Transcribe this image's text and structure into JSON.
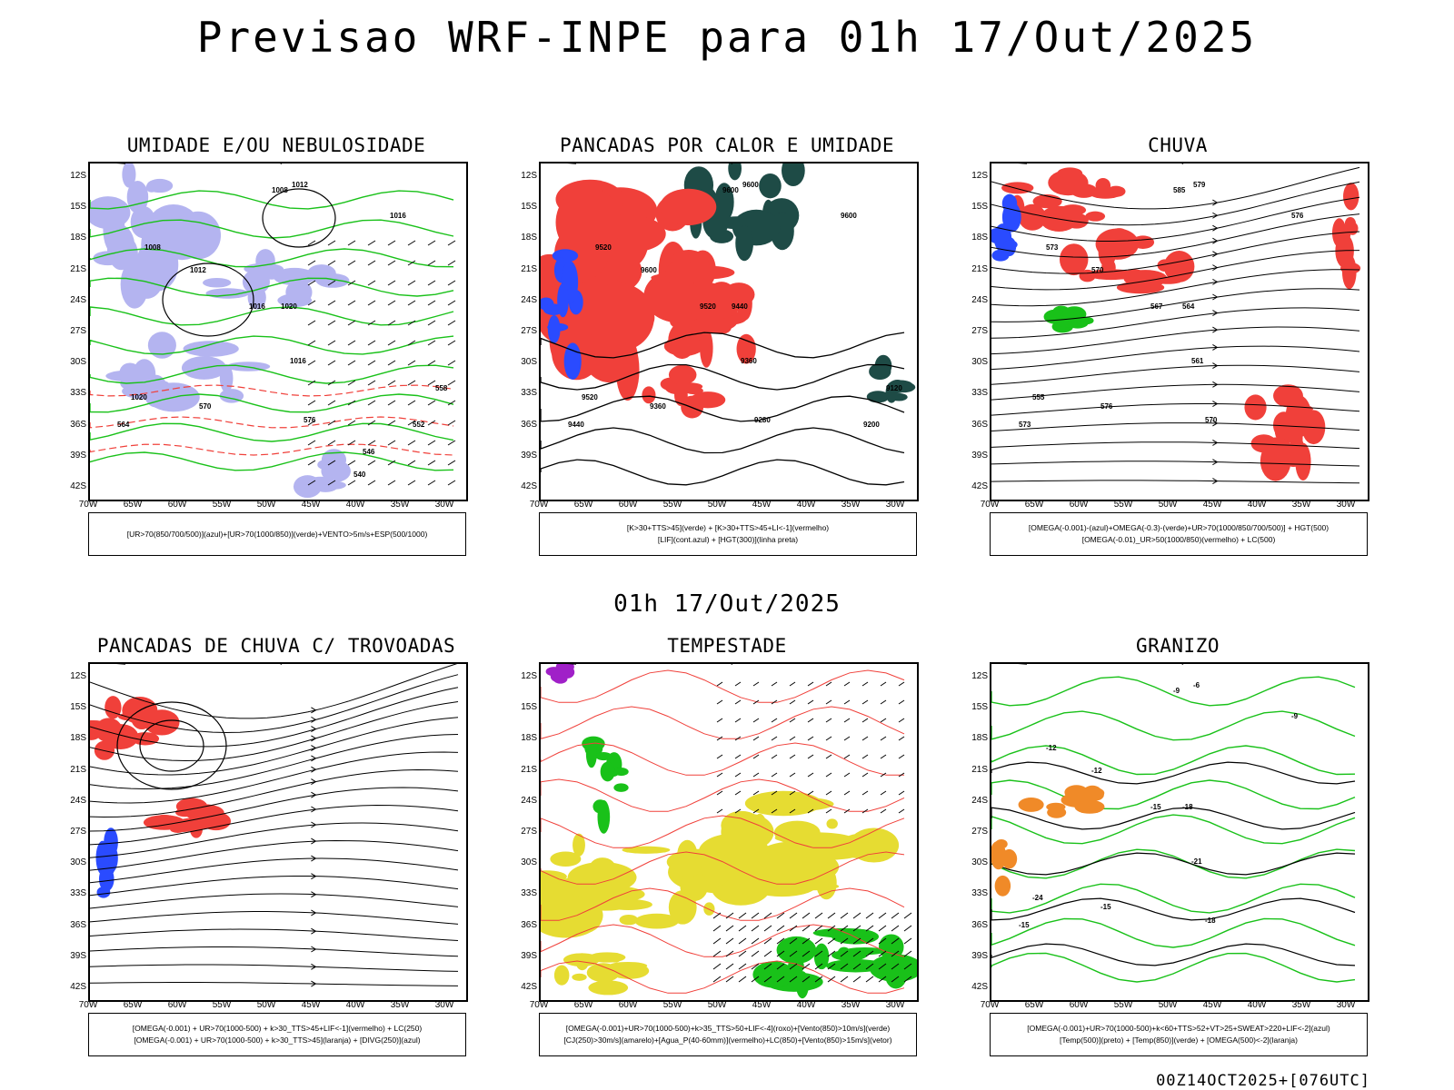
{
  "header": {
    "title": "Previsao WRF-INPE  para 01h 17/Out/2025",
    "mid_title": "01h 17/Out/2025",
    "footer": "00Z14OCT2025+[076UTC]"
  },
  "axes": {
    "lat_labels": [
      "12S",
      "15S",
      "18S",
      "21S",
      "24S",
      "27S",
      "30S",
      "33S",
      "36S",
      "39S",
      "42S"
    ],
    "lon_labels": [
      "70W",
      "65W",
      "60W",
      "55W",
      "50W",
      "45W",
      "40W",
      "35W",
      "30W"
    ]
  },
  "colors": {
    "land_line": "#000000",
    "green": "#19c119",
    "red": "#f0403a",
    "blue": "#2a4bff",
    "lavender": "#b4b4f0",
    "dark_teal": "#1e4b46",
    "yellow": "#e6dc32",
    "orange": "#f08a28",
    "purple": "#a020c8"
  },
  "panels": [
    {
      "id": "umidade",
      "title": "UMIDADE E/OU NEBULOSIDADE",
      "legend": [
        "[UR>70(850/700/500)](azul)+[UR>70(1000/850)](verde)+VENTO>5m/s+ESP(500/1000)"
      ],
      "contour_labels": [
        "1008",
        "1012",
        "1016",
        "1008",
        "1012",
        "1016",
        "1020",
        "1016",
        "1020",
        "564",
        "570",
        "576",
        "552",
        "558",
        "546",
        "540"
      ]
    },
    {
      "id": "pancadas-calor",
      "title": "PANCADAS POR CALOR E UMIDADE",
      "legend": [
        "[K>30+TTS>45](verde) + [K>30+TTS>45+LI<-1](vermelho)",
        "[LIF](cont.azul) + [HGT(300)](linha preta)"
      ],
      "contour_labels": [
        "9600",
        "9600",
        "9600",
        "9520",
        "9600",
        "9520",
        "9440",
        "9360",
        "9520",
        "9440",
        "9360",
        "9280",
        "9200",
        "9120"
      ]
    },
    {
      "id": "chuva",
      "title": "CHUVA",
      "legend": [
        "[OMEGA(-0.001)-(azul)+OMEGA(-0.3)-(verde)+UR>70(1000/850/700/500)] + HGT(500)",
        "[OMEGA(-0.01)_UR>50(1000/850)(vermelho) + LC(500)"
      ],
      "contour_labels": [
        "585",
        "579",
        "576",
        "573",
        "570",
        "567",
        "564",
        "561",
        "555",
        "573",
        "576",
        "570"
      ]
    },
    {
      "id": "pancadas-trovoadas",
      "title": "PANCADAS DE CHUVA C/ TROVOADAS",
      "legend": [
        "[OMEGA(-0.001) + UR>70(1000-500) + k>30_TTS>45+LIF<-1](vermelho) + LC(250)",
        "[OMEGA(-0.001) + UR>70(1000-500) + k>30_TTS>45](laranja) + [DIVG(250)](azul)"
      ],
      "contour_labels": []
    },
    {
      "id": "tempestade",
      "title": "TEMPESTADE",
      "legend": [
        "[OMEGA(-0.001)+UR>70(1000-500)+k>35_TTS>50+LIF<-4](roxo)+[Vento(850)>10m/s](verde)",
        "[CJ(250)>30m/s](amarelo)+[Agua_P(40-60mm)](vermelho)+LC(850)+[Vento(850)>15m/s](vetor)"
      ],
      "contour_labels": []
    },
    {
      "id": "granizo",
      "title": "GRANIZO",
      "legend": [
        "[OMEGA(-0.001)+UR>70(1000-500)+k<60+TTS>52+VT>25+SWEAT>220+LIF<-2](azul)",
        "[Temp(500)](preto) + [Temp(850)](verde) + [OMEGA(500)<-2](laranja)"
      ],
      "contour_labels": [
        "-9",
        "-6",
        "-9",
        "-12",
        "-12",
        "-15",
        "-18",
        "-21",
        "-24",
        "-15",
        "-15",
        "-18"
      ]
    }
  ]
}
